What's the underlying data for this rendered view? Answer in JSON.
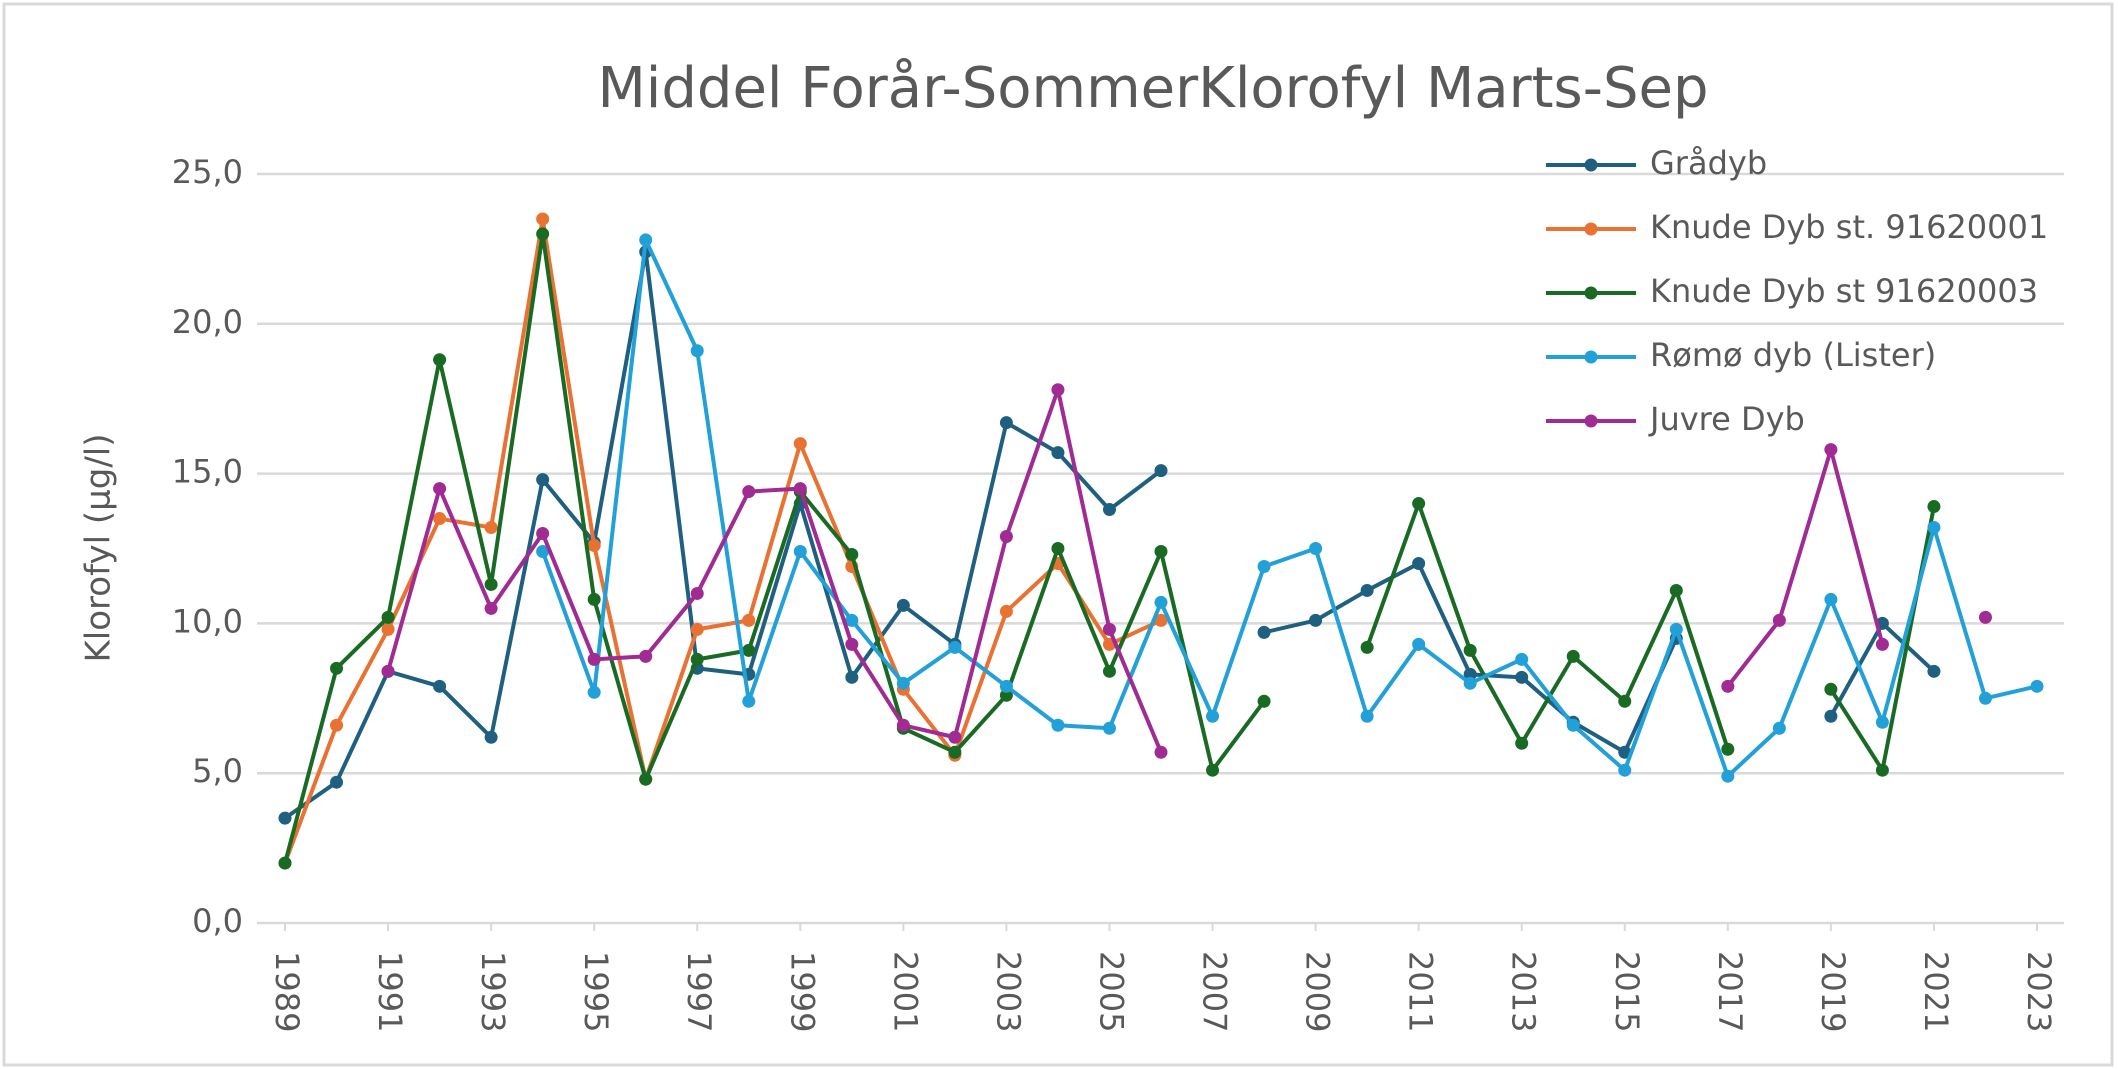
{
  "chart_data": {
    "type": "line",
    "title": "Middel Forår-SommerKlorofyl Marts-Sep",
    "y_label": "Klorofyl (µg/l)",
    "x": [
      1989,
      1990,
      1991,
      1992,
      1993,
      1994,
      1995,
      1996,
      1997,
      1998,
      1999,
      2000,
      2001,
      2002,
      2003,
      2004,
      2005,
      2006,
      2007,
      2008,
      2009,
      2010,
      2011,
      2012,
      2013,
      2014,
      2015,
      2016,
      2017,
      2018,
      2019,
      2020,
      2021,
      2022,
      2023
    ],
    "xlim": [
      1989,
      2023
    ],
    "xticks": [
      1989,
      1991,
      1993,
      1995,
      1997,
      1999,
      2001,
      2003,
      2005,
      2007,
      2009,
      2011,
      2013,
      2015,
      2017,
      2019,
      2021,
      2023
    ],
    "ylim": [
      0,
      25
    ],
    "yticks": [
      {
        "value": 0,
        "label": "0,0"
      },
      {
        "value": 5,
        "label": "5,0"
      },
      {
        "value": 10,
        "label": "10,0"
      },
      {
        "value": 15,
        "label": "15,0"
      },
      {
        "value": 20,
        "label": "20,0"
      },
      {
        "value": 25,
        "label": "25,0"
      }
    ],
    "grid": true,
    "legend": "upper right",
    "series": [
      {
        "name": "Grådyb",
        "color": "#1f5f80",
        "values": [
          3.5,
          4.7,
          8.4,
          7.9,
          6.2,
          14.8,
          12.7,
          22.4,
          8.5,
          8.3,
          14.0,
          8.2,
          10.6,
          9.3,
          16.7,
          15.7,
          13.8,
          15.1,
          null,
          9.7,
          10.1,
          11.1,
          12.0,
          8.3,
          8.2,
          6.7,
          5.7,
          9.5,
          null,
          null,
          6.9,
          10.0,
          8.4,
          null,
          null
        ]
      },
      {
        "name": "Knude Dyb st. 91620001",
        "color": "#e97132",
        "values": [
          2.0,
          6.6,
          9.8,
          13.5,
          13.2,
          23.5,
          12.6,
          4.8,
          9.8,
          10.1,
          16.0,
          11.9,
          7.8,
          5.6,
          10.4,
          12.0,
          9.3,
          10.1,
          null,
          null,
          null,
          null,
          null,
          null,
          null,
          null,
          null,
          null,
          null,
          null,
          null,
          null,
          null,
          null,
          null
        ]
      },
      {
        "name": "Knude Dyb st 91620003",
        "color": "#196b24",
        "values": [
          2.0,
          8.5,
          10.2,
          18.8,
          11.3,
          23.0,
          10.8,
          4.8,
          8.8,
          9.1,
          14.4,
          12.3,
          6.5,
          5.7,
          7.6,
          12.5,
          8.4,
          12.4,
          5.1,
          7.4,
          null,
          9.2,
          14.0,
          9.1,
          6.0,
          8.9,
          7.4,
          11.1,
          5.8,
          null,
          7.8,
          5.1,
          13.9,
          null,
          null
        ]
      },
      {
        "name": "Rømø dyb (Lister)",
        "color": "#22a0d8",
        "values": [
          null,
          null,
          null,
          null,
          null,
          12.4,
          7.7,
          22.8,
          19.1,
          7.4,
          12.4,
          10.1,
          8.0,
          9.2,
          7.9,
          6.6,
          6.5,
          10.7,
          6.9,
          11.9,
          12.5,
          6.9,
          9.3,
          8.0,
          8.8,
          6.6,
          5.1,
          9.8,
          4.9,
          6.5,
          10.8,
          6.7,
          13.2,
          7.5,
          7.9
        ]
      },
      {
        "name": "Juvre Dyb",
        "color": "#a02b93",
        "values": [
          null,
          null,
          8.4,
          14.5,
          10.5,
          13.0,
          8.8,
          8.9,
          11.0,
          14.4,
          14.5,
          9.3,
          6.6,
          6.2,
          12.9,
          17.8,
          9.8,
          5.7,
          null,
          null,
          null,
          null,
          null,
          null,
          null,
          null,
          null,
          null,
          7.9,
          10.1,
          15.8,
          9.3,
          null,
          10.2,
          null
        ]
      }
    ]
  }
}
